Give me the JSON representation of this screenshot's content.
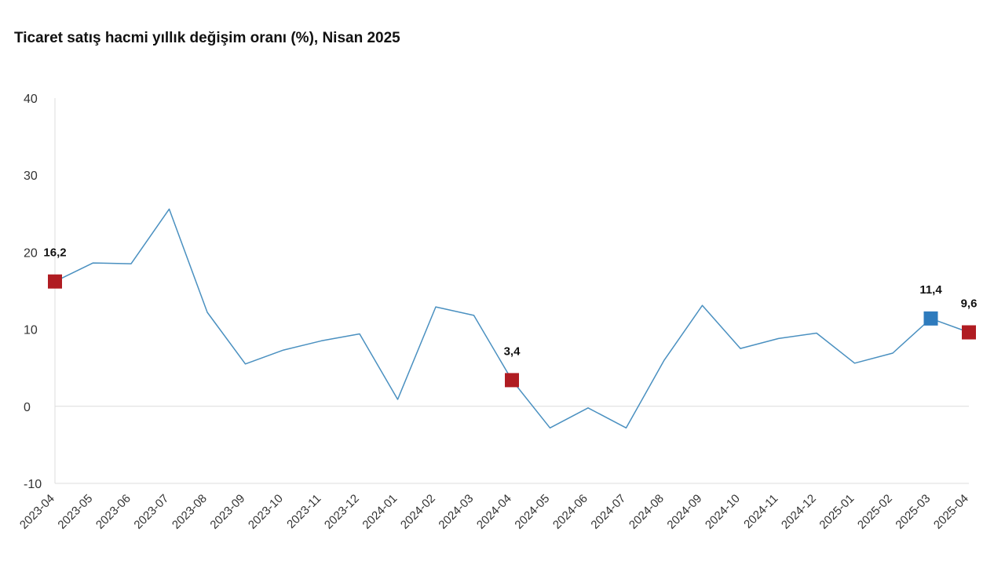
{
  "chart_data": {
    "type": "line",
    "title": "Ticaret satış hacmi yıllık değişim oranı (%), Nisan 2025",
    "categories": [
      "2023-04",
      "2023-05",
      "2023-06",
      "2023-07",
      "2023-08",
      "2023-09",
      "2023-10",
      "2023-11",
      "2023-12",
      "2024-01",
      "2024-02",
      "2024-03",
      "2024-04",
      "2024-05",
      "2024-06",
      "2024-07",
      "2024-08",
      "2024-09",
      "2024-10",
      "2024-11",
      "2024-12",
      "2025-01",
      "2025-02",
      "2025-03",
      "2025-04"
    ],
    "series": [
      {
        "values": [
          16.2,
          18.6,
          18.5,
          25.6,
          12.2,
          5.5,
          7.3,
          8.5,
          9.4,
          0.9,
          12.9,
          11.8,
          3.4,
          -2.8,
          -0.2,
          -2.8,
          6.0,
          13.1,
          7.5,
          8.8,
          9.5,
          5.6,
          6.9,
          11.4,
          9.6
        ],
        "color": "#4a90c0"
      }
    ],
    "highlights": [
      {
        "index": 0,
        "label": "16,2",
        "color": "#b01c22"
      },
      {
        "index": 12,
        "label": "3,4",
        "color": "#b01c22"
      },
      {
        "index": 23,
        "label": "11,4",
        "color": "#2e7bbd"
      },
      {
        "index": 24,
        "label": "9,6",
        "color": "#b01c22"
      }
    ],
    "ylim": [
      -10,
      40
    ],
    "yticks": [
      -10,
      0,
      10,
      20,
      30,
      40
    ],
    "ytick_labels": [
      "-10",
      "0",
      "10",
      "20",
      "30",
      "40"
    ],
    "xlabel": "",
    "ylabel": "",
    "grid": false,
    "legend": "none"
  }
}
